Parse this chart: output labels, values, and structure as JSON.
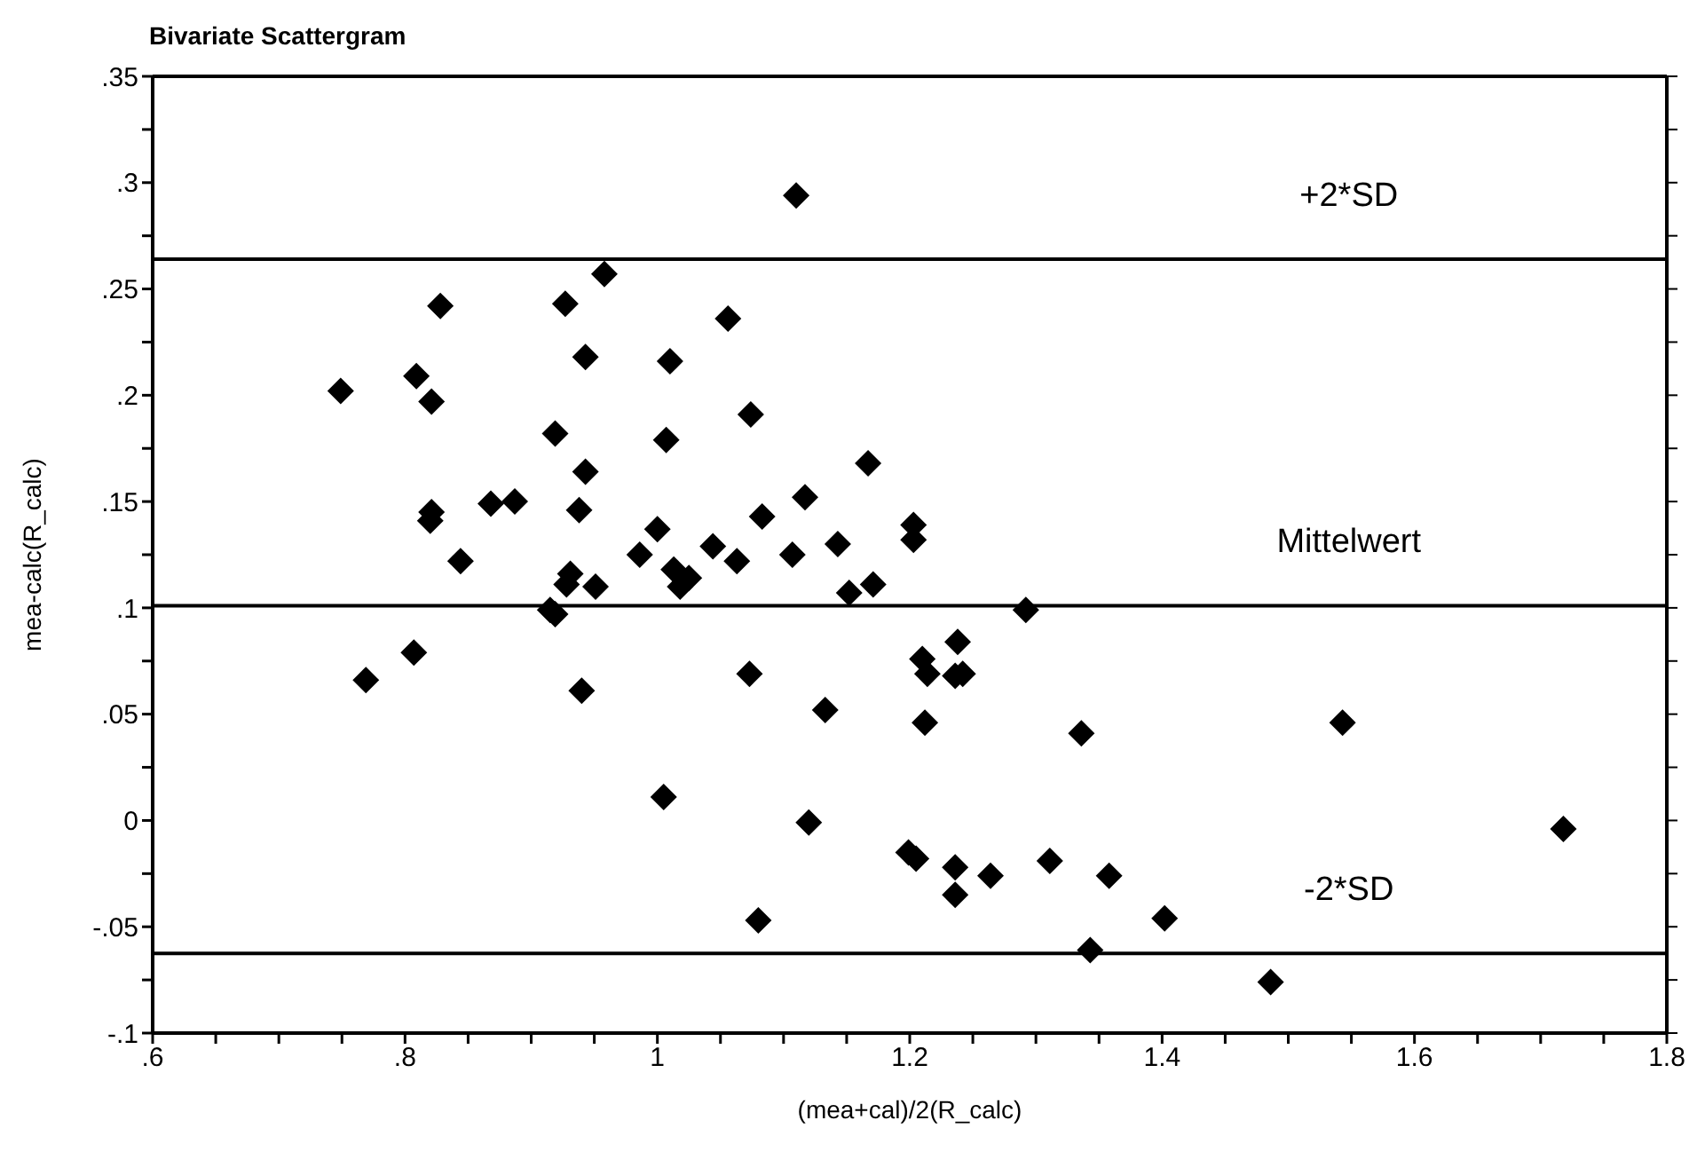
{
  "chart_data": {
    "type": "scatter",
    "title": "Bivariate Scattergram",
    "xlabel": "(mea+cal)/2(R_calc)",
    "ylabel": "mea-calc(R_calc)",
    "xlim": [
      0.6,
      1.8
    ],
    "xticks": [
      {
        "value": 0.6,
        "label": ".6"
      },
      {
        "value": 0.65,
        "label": null
      },
      {
        "value": 0.7,
        "label": null
      },
      {
        "value": 0.75,
        "label": null
      },
      {
        "value": 0.8,
        "label": ".8"
      },
      {
        "value": 0.85,
        "label": null
      },
      {
        "value": 0.9,
        "label": null
      },
      {
        "value": 0.95,
        "label": null
      },
      1,
      {
        "value": 1.05,
        "label": null
      },
      {
        "value": 1.1,
        "label": null
      },
      {
        "value": 1.15,
        "label": null
      },
      1.2,
      {
        "value": 1.25,
        "label": null
      },
      {
        "value": 1.3,
        "label": null
      },
      {
        "value": 1.35,
        "label": null
      },
      1.4,
      {
        "value": 1.45,
        "label": null
      },
      {
        "value": 1.5,
        "label": null
      },
      {
        "value": 1.55,
        "label": null
      },
      1.6,
      {
        "value": 1.65,
        "label": null
      },
      {
        "value": 1.7,
        "label": null
      },
      {
        "value": 1.75,
        "label": null
      },
      1.8
    ],
    "ylim": [
      -0.1,
      0.35
    ],
    "yticks": [
      {
        "value": -0.1,
        "label": "-.1"
      },
      {
        "value": -0.075,
        "label": null
      },
      {
        "value": -0.05,
        "label": "-.05"
      },
      {
        "value": -0.025,
        "label": null
      },
      0,
      {
        "value": 0.025,
        "label": null
      },
      {
        "value": 0.05,
        "label": ".05"
      },
      {
        "value": 0.075,
        "label": null
      },
      {
        "value": 0.1,
        "label": ".1"
      },
      {
        "value": 0.125,
        "label": null
      },
      {
        "value": 0.15,
        "label": ".15"
      },
      {
        "value": 0.175,
        "label": null
      },
      {
        "value": 0.2,
        "label": ".2"
      },
      {
        "value": 0.225,
        "label": null
      },
      {
        "value": 0.25,
        "label": ".25"
      },
      {
        "value": 0.275,
        "label": null
      },
      {
        "value": 0.3,
        "label": ".3"
      },
      {
        "value": 0.325,
        "label": null
      },
      {
        "value": 0.35,
        "label": ".35"
      }
    ],
    "marker": "diamond",
    "x": [
      0.749,
      1.11,
      0.828,
      0.927,
      0.958,
      1.056,
      0.809,
      0.821,
      0.943,
      1.01,
      0.919,
      1.007,
      1.074,
      0.943,
      1.117,
      0.821,
      0.82,
      0.868,
      0.887,
      0.938,
      1.083,
      1.0,
      0.844,
      0.986,
      1.044,
      1.063,
      1.107,
      1.143,
      1.167,
      1.203,
      1.203,
      1.171,
      0.931,
      0.928,
      0.951,
      1.013,
      1.018,
      1.025,
      0.915,
      0.919,
      1.152,
      0.769,
      0.807,
      0.94,
      1.073,
      1.133,
      1.005,
      1.12,
      1.08,
      1.292,
      1.238,
      1.21,
      1.214,
      1.236,
      1.242,
      1.212,
      1.336,
      1.543,
      1.718,
      1.199,
      1.205,
      1.236,
      1.236,
      1.264,
      1.311,
      1.358,
      1.402,
      1.343,
      1.486
    ],
    "series": [
      {
        "color": "#000000",
        "values": [
          0.202,
          0.294,
          0.242,
          0.243,
          0.257,
          0.236,
          0.209,
          0.197,
          0.218,
          0.216,
          0.182,
          0.179,
          0.191,
          0.164,
          0.152,
          0.145,
          0.141,
          0.149,
          0.15,
          0.146,
          0.143,
          0.137,
          0.122,
          0.125,
          0.129,
          0.122,
          0.125,
          0.13,
          0.168,
          0.139,
          0.132,
          0.111,
          0.116,
          0.111,
          0.11,
          0.118,
          0.11,
          0.114,
          0.099,
          0.097,
          0.107,
          0.066,
          0.079,
          0.061,
          0.069,
          0.052,
          0.011,
          -0.001,
          -0.047,
          0.099,
          0.084,
          0.076,
          0.069,
          0.068,
          0.069,
          0.046,
          0.041,
          0.046,
          -0.004,
          -0.015,
          -0.018,
          -0.022,
          -0.035,
          -0.026,
          -0.019,
          -0.026,
          -0.046,
          -0.061,
          -0.076
        ]
      }
    ],
    "ref_lines": [
      {
        "axis": "y",
        "value": 0.264,
        "label": "+2*SD",
        "color": "#000000"
      },
      {
        "axis": "y",
        "value": 0.101,
        "label": "Mittelwert",
        "color": "#000000"
      },
      {
        "axis": "y",
        "value": -0.0625,
        "label": "-2*SD",
        "color": "#000000"
      }
    ]
  }
}
